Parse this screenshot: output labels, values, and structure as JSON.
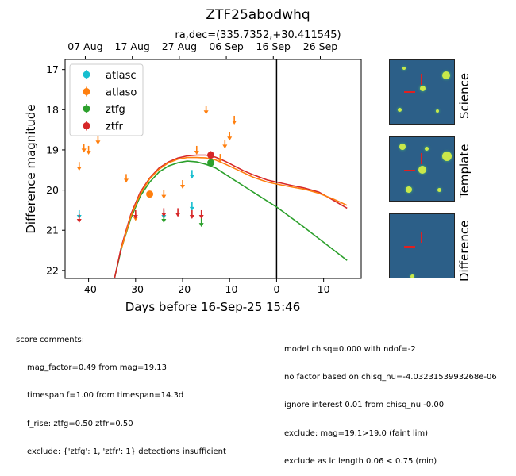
{
  "title": "ZTF25abodwhq",
  "subtitle": "ra,dec=(335.7352,+30.411545)",
  "chart_data": {
    "type": "scatter",
    "xlabel": "Days before 16-Sep-25 15:46",
    "ylabel": "Difference magnitude",
    "xlim": [
      -45,
      18
    ],
    "ylim": [
      22.2,
      16.75
    ],
    "x_ticks": [
      -40,
      -30,
      -20,
      -10,
      0,
      10
    ],
    "y_ticks": [
      17,
      18,
      19,
      20,
      21,
      22
    ],
    "top_axis_ticks": [
      {
        "label": "07 Aug",
        "x": -40.7
      },
      {
        "label": "17 Aug",
        "x": -30.7
      },
      {
        "label": "27 Aug",
        "x": -20.7
      },
      {
        "label": "06 Sep",
        "x": -10.7
      },
      {
        "label": "16 Sep",
        "x": -0.7
      },
      {
        "label": "26 Sep",
        "x": 9.3
      }
    ],
    "vline_x": 0,
    "legend_position": "upper left",
    "series": [
      {
        "name": "atlasc",
        "color": "#17becf",
        "upper_limits": [
          {
            "x": -42,
            "y": 20.6
          },
          {
            "x": -24,
            "y": 20.6
          },
          {
            "x": -18,
            "y": 19.6
          },
          {
            "x": -18,
            "y": 20.4
          }
        ],
        "detections": []
      },
      {
        "name": "atlaso",
        "color": "#ff7f0e",
        "upper_limits": [
          {
            "x": -42,
            "y": 19.4
          },
          {
            "x": -41,
            "y": 18.95
          },
          {
            "x": -40,
            "y": 19.0
          },
          {
            "x": -38,
            "y": 18.75
          },
          {
            "x": -32,
            "y": 19.7
          },
          {
            "x": -30,
            "y": 20.65
          },
          {
            "x": -24,
            "y": 20.1
          },
          {
            "x": -20,
            "y": 19.85
          },
          {
            "x": -17,
            "y": 19.0
          },
          {
            "x": -15,
            "y": 18.0
          },
          {
            "x": -12,
            "y": 19.2
          },
          {
            "x": -11,
            "y": 18.85
          },
          {
            "x": -10,
            "y": 18.65
          },
          {
            "x": -9,
            "y": 18.25
          }
        ],
        "detections": [
          {
            "x": -27,
            "y": 20.1,
            "err": 0.05
          }
        ]
      },
      {
        "name": "ztfg",
        "color": "#2ca02c",
        "upper_limits": [
          {
            "x": -24,
            "y": 20.7
          },
          {
            "x": -16,
            "y": 20.8
          }
        ],
        "detections": [
          {
            "x": -14,
            "y": 19.32,
            "err": 0.1
          }
        ]
      },
      {
        "name": "ztfr",
        "color": "#d62728",
        "upper_limits": [
          {
            "x": -42,
            "y": 20.7
          },
          {
            "x": -30,
            "y": 20.6
          },
          {
            "x": -24,
            "y": 20.55
          },
          {
            "x": -21,
            "y": 20.55
          },
          {
            "x": -18,
            "y": 20.6
          },
          {
            "x": -16,
            "y": 20.6
          }
        ],
        "detections": [
          {
            "x": -14,
            "y": 19.13,
            "err": 0.1
          }
        ]
      }
    ],
    "model_curves": [
      {
        "name": "ztfg model",
        "color": "#2ca02c",
        "points": [
          [
            -34.5,
            22.2
          ],
          [
            -33,
            21.45
          ],
          [
            -31,
            20.7
          ],
          [
            -29,
            20.15
          ],
          [
            -27,
            19.8
          ],
          [
            -25,
            19.55
          ],
          [
            -23,
            19.4
          ],
          [
            -21,
            19.32
          ],
          [
            -19,
            19.28
          ],
          [
            -17,
            19.3
          ],
          [
            -15,
            19.36
          ],
          [
            -13,
            19.45
          ],
          [
            -11,
            19.6
          ],
          [
            -9,
            19.75
          ],
          [
            -7,
            19.9
          ],
          [
            -5,
            20.05
          ],
          [
            -3,
            20.2
          ],
          [
            0,
            20.42
          ],
          [
            5,
            20.85
          ],
          [
            10,
            21.3
          ],
          [
            15,
            21.75
          ]
        ]
      },
      {
        "name": "ztfr model",
        "color": "#d62728",
        "points": [
          [
            -34.5,
            22.2
          ],
          [
            -33,
            21.4
          ],
          [
            -31,
            20.6
          ],
          [
            -29,
            20.05
          ],
          [
            -27,
            19.7
          ],
          [
            -25,
            19.45
          ],
          [
            -23,
            19.3
          ],
          [
            -21,
            19.2
          ],
          [
            -19,
            19.15
          ],
          [
            -17,
            19.13
          ],
          [
            -15,
            19.13
          ],
          [
            -13,
            19.18
          ],
          [
            -11,
            19.28
          ],
          [
            -9,
            19.4
          ],
          [
            -7,
            19.52
          ],
          [
            -5,
            19.62
          ],
          [
            -2,
            19.75
          ],
          [
            0,
            19.8
          ],
          [
            3,
            19.88
          ],
          [
            6,
            19.95
          ],
          [
            9,
            20.05
          ],
          [
            12,
            20.25
          ],
          [
            15,
            20.45
          ]
        ]
      },
      {
        "name": "atlaso model",
        "color": "#ff7f0e",
        "points": [
          [
            -33,
            21.45
          ],
          [
            -31,
            20.65
          ],
          [
            -29,
            20.1
          ],
          [
            -27,
            19.72
          ],
          [
            -25,
            19.48
          ],
          [
            -23,
            19.32
          ],
          [
            -21,
            19.23
          ],
          [
            -19,
            19.19
          ],
          [
            -17,
            19.19
          ],
          [
            -15,
            19.2
          ],
          [
            -13,
            19.25
          ],
          [
            -11,
            19.35
          ],
          [
            -9,
            19.46
          ],
          [
            -7,
            19.57
          ],
          [
            -5,
            19.68
          ],
          [
            -2,
            19.8
          ],
          [
            0,
            19.85
          ],
          [
            3,
            19.92
          ],
          [
            6,
            19.98
          ],
          [
            9,
            20.08
          ],
          [
            12,
            20.22
          ],
          [
            15,
            20.38
          ]
        ]
      }
    ]
  },
  "cutouts": [
    {
      "label": "Science"
    },
    {
      "label": "Template"
    },
    {
      "label": "Difference"
    }
  ],
  "comments_left": {
    "heading": "score comments:",
    "lines": [
      "mag_factor=0.49 from mag=19.13",
      "timespan f=1.00 from timespan=14.3d",
      "f_rise: ztfg=0.50 ztfr=0.50",
      "exclude: {'ztfg': 1, 'ztfr': 1} detections insufficient"
    ]
  },
  "comments_right": {
    "lines": [
      "model chisq=0.000 with ndof=-2",
      "no factor based on chisq_nu=-4.0323153993268e-06",
      "ignore interest 0.01 from chisq_nu -0.00",
      "exclude: mag=19.1>19.0 (faint lim)",
      "exclude as lc length 0.06 < 0.75 (min)"
    ]
  }
}
